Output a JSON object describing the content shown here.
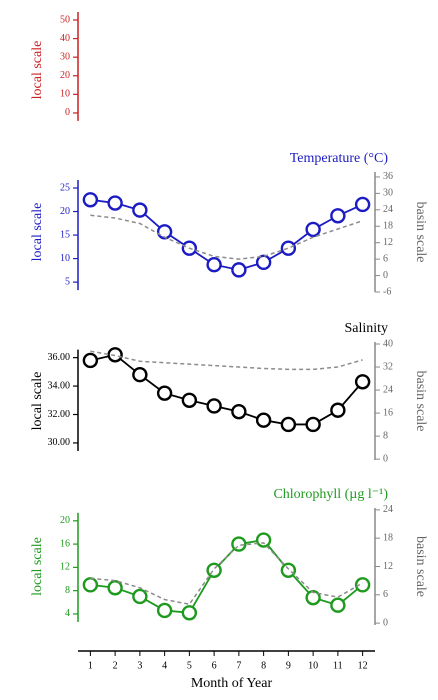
{
  "chart_data": [
    {
      "type": "line",
      "color": "#cc1f1f",
      "ylabel": "local scale",
      "ylim": [
        -8.1,
        54.3
      ],
      "yticks": [
        0,
        10,
        20,
        30,
        40,
        50
      ]
    },
    {
      "type": "line",
      "title": "Temperature (°C)",
      "color": "#1c1cc4",
      "ylabel": "local scale",
      "y2label": "basin scale",
      "ylim": [
        2.9,
        28.4
      ],
      "yticks": [
        5,
        10,
        15,
        20,
        25
      ],
      "y2lim": [
        -6,
        37.8
      ],
      "y2ticks": [
        -6,
        0,
        6,
        12,
        18,
        24,
        30,
        36
      ],
      "series": [
        {
          "color": "#1c1cc4",
          "marker": "circle",
          "values": [
            22.5,
            21.8,
            20.3,
            15.7,
            12.2,
            8.7,
            7.6,
            9.2,
            12.2,
            16.2,
            19.1,
            21.5
          ]
        },
        {
          "color": "#8c8c8c",
          "dash": true,
          "axis": "y2",
          "values": [
            22,
            21,
            19,
            14,
            10,
            7,
            6,
            7,
            10,
            14,
            17,
            20
          ]
        }
      ]
    },
    {
      "type": "line",
      "title": "Salinity",
      "color": "#000000",
      "ylabel": "local scale",
      "y2label": "basin scale",
      "ylim": [
        28.8,
        37.1
      ],
      "yticks": [
        {
          "value": 30,
          "label": "30.00"
        },
        {
          "value": 32,
          "label": "32.00"
        },
        {
          "value": 34,
          "label": "34.00"
        },
        {
          "value": 36,
          "label": "36.00"
        }
      ],
      "y2lim": [
        -0.3,
        40.7
      ],
      "y2ticks": [
        0,
        8,
        16,
        24,
        32,
        40
      ],
      "series": [
        {
          "color": "#000000",
          "marker": "circle",
          "values": [
            35.8,
            36.2,
            34.8,
            33.5,
            33.0,
            32.6,
            32.2,
            31.6,
            31.3,
            31.3,
            32.3,
            34.3
          ]
        },
        {
          "color": "#8c8c8c",
          "dash": true,
          "axis": "y2",
          "values": [
            37.5,
            36,
            34,
            33.5,
            33,
            32.5,
            32,
            31.5,
            31.2,
            31.2,
            32,
            34.5
          ]
        }
      ]
    },
    {
      "type": "line",
      "title": "Chlorophyll (µg l⁻¹)",
      "color": "#1e9a1e",
      "ylabel": "local scale",
      "y2label": "basin scale",
      "ylim": [
        2.1,
        22.2
      ],
      "yticks": [
        4,
        8,
        12,
        16,
        20
      ],
      "y2lim": [
        -0.4,
        24.4
      ],
      "y2ticks": [
        0,
        6,
        12,
        18,
        24
      ],
      "series": [
        {
          "color": "#1e9a1e",
          "marker": "circle",
          "values": [
            9,
            8.5,
            7,
            4.6,
            4.2,
            11.5,
            16,
            16.7,
            11.5,
            6.8,
            5.5,
            9
          ]
        },
        {
          "color": "#8c8c8c",
          "dash": true,
          "axis": "y2",
          "values": [
            9.5,
            9,
            7.5,
            5,
            4,
            11.5,
            16.5,
            17,
            11.5,
            6.5,
            5.5,
            8.5
          ]
        }
      ],
      "xlabel": "Month of Year",
      "xlim": [
        0.5,
        12.5
      ],
      "x": [
        1,
        2,
        3,
        4,
        5,
        6,
        7,
        8,
        9,
        10,
        11,
        12
      ],
      "xticks": [
        1,
        2,
        3,
        4,
        5,
        6,
        7,
        8,
        9,
        10,
        11,
        12
      ]
    }
  ]
}
